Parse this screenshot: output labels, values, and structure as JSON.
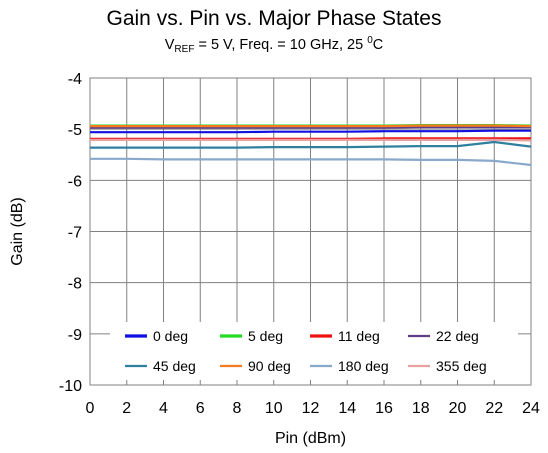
{
  "chart_data": {
    "type": "line",
    "title": "Gain vs. Pin vs. Major Phase States",
    "subtitle": {
      "v_main": "V",
      "v_sub": "REF",
      "mid": " = 5 V, Freq. = 10 GHz, 25 ",
      "deg_sup": "0",
      "end": "C"
    },
    "xlabel": "Pin (dBm)",
    "ylabel": "Gain (dB)",
    "xlim": [
      0,
      24
    ],
    "ylim": [
      -10,
      -4
    ],
    "xticks": [
      0,
      2,
      4,
      6,
      8,
      10,
      12,
      14,
      16,
      18,
      20,
      22,
      24
    ],
    "yticks": [
      -4,
      -5,
      -6,
      -7,
      -8,
      -9,
      -10
    ],
    "grid": true,
    "legend_position": "bottom",
    "x": [
      0,
      2,
      4,
      6,
      8,
      10,
      12,
      14,
      16,
      18,
      20,
      22,
      24
    ],
    "series": [
      {
        "name": "0 deg",
        "color": "#1010e0",
        "values": [
          -5.06,
          -5.06,
          -5.06,
          -5.06,
          -5.06,
          -5.05,
          -5.05,
          -5.05,
          -5.04,
          -5.04,
          -5.04,
          -5.03,
          -5.03
        ]
      },
      {
        "name": "5 deg",
        "color": "#22dd22",
        "values": [
          -4.93,
          -4.93,
          -4.93,
          -4.93,
          -4.93,
          -4.93,
          -4.93,
          -4.93,
          -4.93,
          -4.92,
          -4.92,
          -4.92,
          -4.93
        ]
      },
      {
        "name": "11 deg",
        "color": "#ee1111",
        "values": [
          -5.19,
          -5.19,
          -5.19,
          -5.19,
          -5.19,
          -5.19,
          -5.19,
          -5.19,
          -5.18,
          -5.18,
          -5.18,
          -5.18,
          -5.18
        ]
      },
      {
        "name": "22 deg",
        "color": "#5e3c8a",
        "values": [
          -4.97,
          -4.97,
          -4.97,
          -4.97,
          -4.97,
          -4.97,
          -4.97,
          -4.97,
          -4.97,
          -4.96,
          -4.96,
          -4.96,
          -4.96
        ]
      },
      {
        "name": "45 deg",
        "color": "#2f7f9f",
        "values": [
          -5.36,
          -5.36,
          -5.36,
          -5.36,
          -5.36,
          -5.35,
          -5.35,
          -5.35,
          -5.34,
          -5.33,
          -5.33,
          -5.25,
          -5.34
        ]
      },
      {
        "name": "90 deg",
        "color": "#f47c20",
        "values": [
          -4.94,
          -4.94,
          -4.94,
          -4.94,
          -4.94,
          -4.94,
          -4.94,
          -4.94,
          -4.94,
          -4.93,
          -4.93,
          -4.93,
          -4.94
        ]
      },
      {
        "name": "180 deg",
        "color": "#8aa8cc",
        "values": [
          -5.58,
          -5.58,
          -5.59,
          -5.59,
          -5.59,
          -5.59,
          -5.59,
          -5.59,
          -5.59,
          -5.6,
          -5.6,
          -5.62,
          -5.7
        ]
      },
      {
        "name": "355 deg",
        "color": "#e8a0a0",
        "values": [
          -5.21,
          -5.21,
          -5.21,
          -5.21,
          -5.21,
          -5.21,
          -5.21,
          -5.21,
          -5.21,
          -5.21,
          -5.21,
          -5.21,
          -5.22
        ]
      }
    ]
  }
}
